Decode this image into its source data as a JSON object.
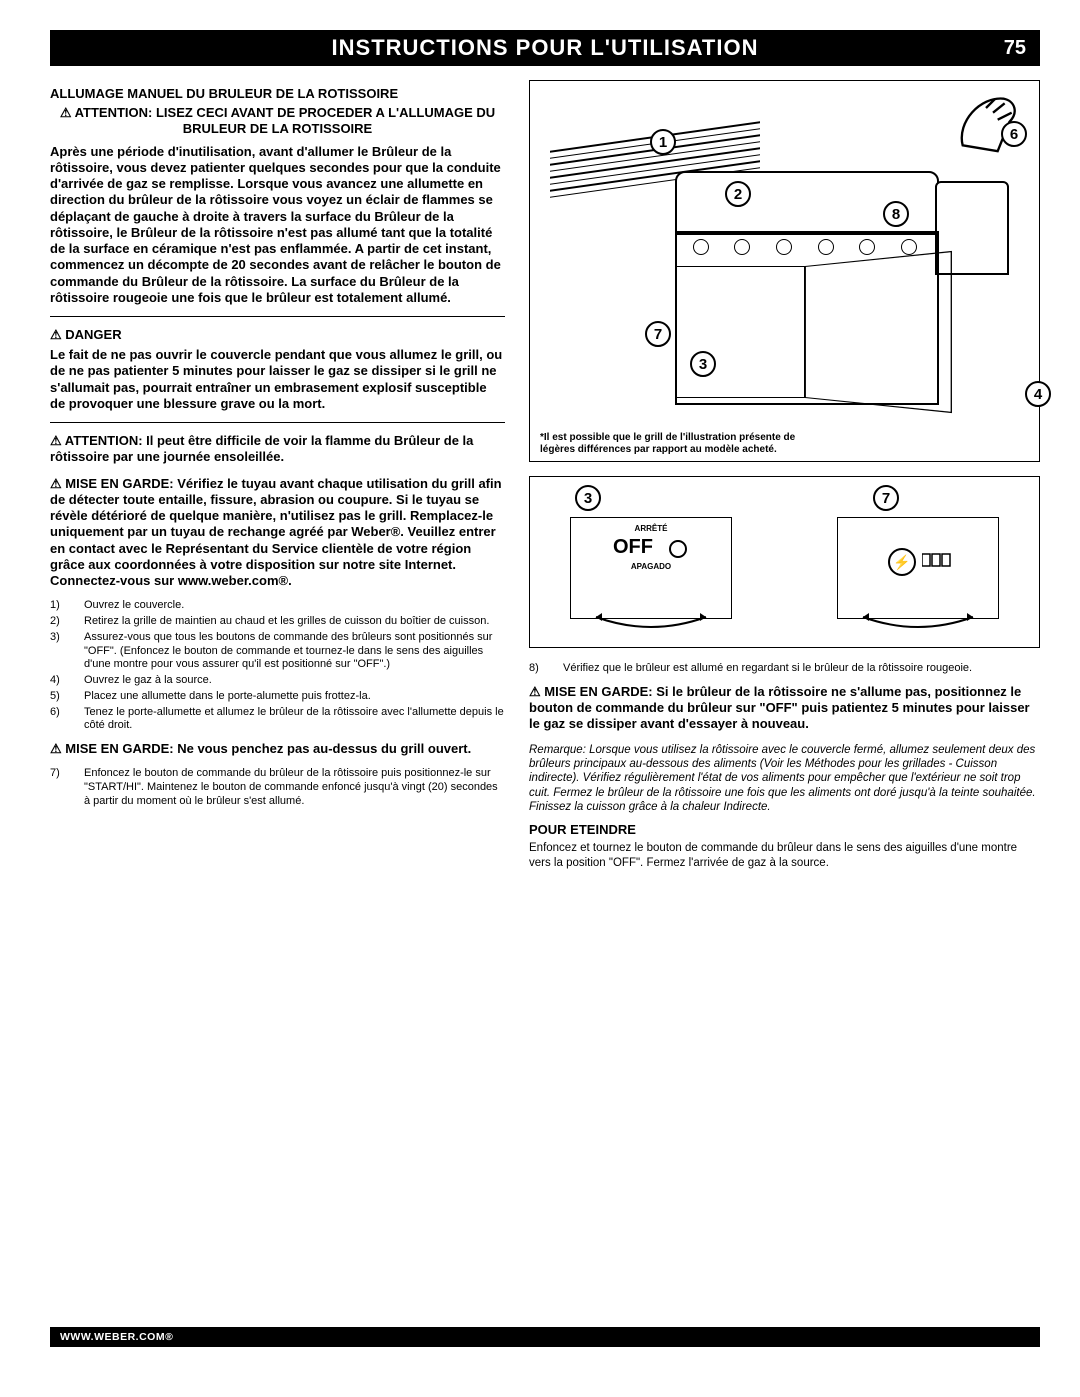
{
  "header": {
    "title": "INSTRUCTIONS POUR L'UTILISATION",
    "page_number": "75"
  },
  "left": {
    "section_title": "ALLUMAGE MANUEL DU BRULEUR DE LA ROTISSOIRE",
    "attention_heading": "⚠ ATTENTION: LISEZ CECI AVANT DE PROCEDER A L'ALLUMAGE DU BRULEUR DE LA ROTISSOIRE",
    "attention_body": "Après une période d'inutilisation, avant d'allumer le Brûleur de la rôtissoire, vous devez patienter quelques secondes pour que la conduite d'arrivée de gaz se remplisse. Lorsque vous avancez une allumette en direction du brûleur de la rôtissoire vous voyez un éclair de flammes se déplaçant de gauche à droite à travers la surface du Brûleur de la rôtissoire, le Brûleur de la rôtissoire n'est pas allumé tant que la totalité de la surface en céramique n'est pas enflammée. A partir de cet instant, commencez un décompte de 20 secondes avant de relâcher le bouton de commande du Brûleur de la rôtissoire. La surface du Brûleur de la rôtissoire rougeoie une fois que le brûleur est totalement allumé.",
    "danger_label": "⚠ DANGER",
    "danger_body": "Le fait de ne pas ouvrir le couvercle pendant que vous allumez le grill, ou de ne pas patienter 5 minutes pour laisser le gaz se dissiper si le grill ne s'allumait pas, pourrait entraîner un embrasement explosif susceptible de provoquer une blessure grave ou la mort.",
    "attention2": "⚠ ATTENTION: Il peut être difficile de voir la flamme du Brûleur de la rôtissoire par une journée ensoleillée.",
    "mise1": "⚠ MISE EN GARDE: Vérifiez le tuyau avant chaque utilisation du grill afin de détecter toute entaille, fissure, abrasion ou coupure. Si le tuyau se révèle détérioré de quelque manière, n'utilisez pas le grill. Remplacez-le uniquement par un tuyau de rechange agréé par Weber®. Veuillez entrer en contact avec le Représentant du Service clientèle de votre région grâce aux coordonnées à votre disposition sur notre site Internet. Connectez-vous sur www.weber.com®.",
    "steps_a": [
      {
        "n": "1)",
        "t": "Ouvrez le couvercle."
      },
      {
        "n": "2)",
        "t": "Retirez la grille de maintien au chaud et les grilles de cuisson du boîtier de cuisson."
      },
      {
        "n": "3)",
        "t": "Assurez-vous que tous les boutons de commande des brûleurs sont positionnés sur \"OFF\". (Enfoncez le bouton de commande et tournez-le dans le sens des aiguilles d'une montre pour vous assurer qu'il est positionné sur \"OFF\".)"
      },
      {
        "n": "4)",
        "t": "Ouvrez le gaz à la source."
      },
      {
        "n": "5)",
        "t": "Placez une allumette dans le porte-alumette puis frottez-la."
      },
      {
        "n": "6)",
        "t": "Tenez le porte-allumette et allumez le brûleur de la rôtissoire avec l'allumette depuis le côté droit."
      }
    ],
    "mise2": "⚠ MISE EN GARDE: Ne vous penchez pas au-dessus du grill ouvert.",
    "steps_b": [
      {
        "n": "7)",
        "t": "Enfoncez le bouton de commande du brûleur de la rôtissoire puis positionnez-le sur \"START/HI\". Maintenez le bouton de commande enfoncé jusqu'à vingt (20) secondes à partir du moment où le brûleur s'est allumé."
      }
    ]
  },
  "right": {
    "fig_note": "*Il est possible que le grill de l'illustration présente de légères différences par rapport au modèle acheté.",
    "callouts_grill": [
      "1",
      "2",
      "3",
      "4",
      "6",
      "7",
      "8"
    ],
    "knob_off": "OFF",
    "knob_arrete": "ARRÊTÉ",
    "knob_apagado": "APAGADO",
    "callouts_knob": [
      "3",
      "7"
    ],
    "steps_c": [
      {
        "n": "8)",
        "t": "Vérifiez que le brûleur est allumé en regardant si le brûleur de la rôtissoire rougeoie."
      }
    ],
    "mise3": "⚠ MISE EN GARDE: Si le brûleur de la rôtissoire ne s'allume pas, positionnez le bouton de commande du brûleur sur \"OFF\" puis patientez 5 minutes pour laisser le gaz se dissiper avant d'essayer à nouveau.",
    "remarque": "Remarque: Lorsque vous utilisez la rôtissoire avec le couvercle fermé, allumez seulement deux des brûleurs principaux au-dessous des aliments (Voir les Méthodes pour les grillades - Cuisson indirecte). Vérifiez régulièrement l'état de vos aliments pour empêcher que l'extérieur ne soit trop cuit. Fermez le brûleur de la rôtissoire une fois que les aliments ont doré jusqu'à la teinte souhaitée. Finissez la cuisson grâce à la chaleur Indirecte.",
    "pour_eteindre_title": "POUR ETEINDRE",
    "pour_eteindre_body": "Enfoncez et tournez le bouton de commande du brûleur dans le sens des aiguilles d'une montre vers la position \"OFF\". Fermez l'arrivée de gaz à la source."
  },
  "footer": "WWW.WEBER.COM®",
  "colors": {
    "black": "#000000",
    "white": "#ffffff"
  }
}
